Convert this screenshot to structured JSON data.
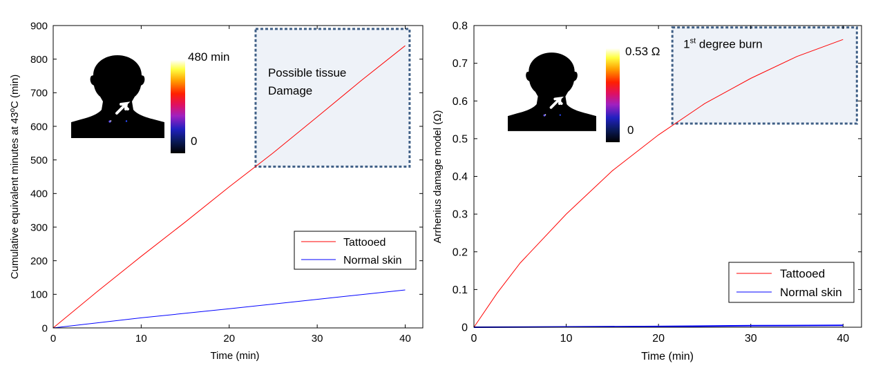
{
  "colors": {
    "tattooed": "#ff0000",
    "normal_skin": "#0000ff",
    "highlight_fill": "#eef2f8",
    "highlight_border": "#3f5f86"
  },
  "chart_data": [
    {
      "type": "line",
      "xlabel": "Time (min)",
      "ylabel": "Cumulative equivalent minutes at 43ºC (min)",
      "xlim": [
        0,
        42
      ],
      "ylim": [
        0,
        900
      ],
      "xticks": [
        0,
        10,
        20,
        30,
        40
      ],
      "yticks": [
        0,
        100,
        200,
        300,
        400,
        500,
        600,
        700,
        800,
        900
      ],
      "grid": false,
      "legend_position": "lower-right",
      "series": [
        {
          "name": "Tattooed",
          "color": "#ff0000",
          "x": [
            0,
            5,
            10,
            15,
            20,
            25,
            30,
            35,
            40
          ],
          "y": [
            0,
            108,
            213,
            315,
            420,
            521,
            628,
            736,
            840
          ]
        },
        {
          "name": "Normal skin",
          "color": "#0000ff",
          "x": [
            0,
            10,
            20,
            30,
            40
          ],
          "y": [
            0,
            30,
            57,
            85,
            113
          ]
        }
      ],
      "annotation": {
        "lines": [
          "Possible tissue",
          "Damage"
        ],
        "x_range": [
          23,
          40.5
        ],
        "y_range": [
          480,
          890
        ]
      },
      "inset": {
        "colorbar_max_label": "480 min",
        "colorbar_min_label": "0"
      }
    },
    {
      "type": "line",
      "xlabel": "Time (min)",
      "ylabel": "Arrhenius damage model (Ω)",
      "xlim": [
        0,
        42
      ],
      "ylim": [
        0,
        0.8
      ],
      "xticks": [
        0,
        10,
        20,
        30,
        40
      ],
      "yticks": [
        0,
        0.1,
        0.2,
        0.3,
        0.4,
        0.5,
        0.6,
        0.7,
        0.8
      ],
      "yticklabels": [
        "0",
        "0.1",
        "0.2",
        "0.3",
        "0.4",
        "0.5",
        "0.6",
        "0.7",
        "0.8"
      ],
      "grid": false,
      "legend_position": "lower-right",
      "series": [
        {
          "name": "Tattooed",
          "color": "#ff0000",
          "x": [
            0,
            2.5,
            5,
            10,
            15,
            20,
            25,
            30,
            35,
            40
          ],
          "y": [
            0,
            0.09,
            0.17,
            0.3,
            0.415,
            0.51,
            0.593,
            0.66,
            0.718,
            0.763
          ]
        },
        {
          "name": "Normal skin",
          "color": "#0000ff",
          "x": [
            0,
            10,
            20,
            30,
            40
          ],
          "y": [
            0,
            0.001,
            0.002,
            0.004,
            0.005
          ]
        }
      ],
      "annotation": {
        "prefix": "1",
        "sup": "st",
        "suffix": " degree burn",
        "x_range": [
          21.5,
          41.5
        ],
        "y_range": [
          0.54,
          0.795
        ]
      },
      "inset": {
        "colorbar_max_label": "0.53 Ω",
        "colorbar_min_label": "0"
      }
    }
  ]
}
